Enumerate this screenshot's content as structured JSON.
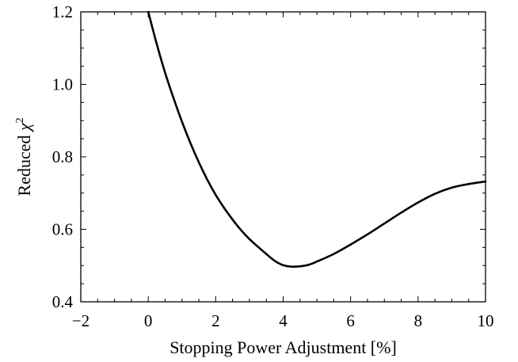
{
  "chart_data": {
    "type": "line",
    "title": "",
    "xlabel": "Stopping Power Adjustment [%]",
    "ylabel": "Reduced χ²",
    "ylabel_parts": {
      "text": "Reduced ",
      "symbol": "χ",
      "superscript": "2"
    },
    "xlim": [
      -2,
      10
    ],
    "ylim": [
      0.4,
      1.2
    ],
    "xticks": [
      -2,
      0,
      2,
      4,
      6,
      8,
      10
    ],
    "xtick_labels": [
      "−2",
      "0",
      "2",
      "4",
      "6",
      "8",
      "10"
    ],
    "yticks": [
      0.4,
      0.6,
      0.8,
      1.0,
      1.2
    ],
    "ytick_labels": [
      "0.4",
      "0.6",
      "0.8",
      "1.0",
      "1.2"
    ],
    "x_minor_step": 0.5,
    "y_minor_step": 0.05,
    "grid": false,
    "legend": "none",
    "series": [
      {
        "color": "#000000",
        "x": [
          0.0,
          0.25,
          0.5,
          0.75,
          1.0,
          1.25,
          1.5,
          1.75,
          2.0,
          2.25,
          2.5,
          2.75,
          3.0,
          3.25,
          3.5,
          3.75,
          4.0,
          4.25,
          4.5,
          4.75,
          5.0,
          5.5,
          6.0,
          6.5,
          7.0,
          7.5,
          8.0,
          8.5,
          9.0,
          9.5,
          10.0
        ],
        "y": [
          1.2,
          1.112,
          1.032,
          0.962,
          0.897,
          0.838,
          0.785,
          0.737,
          0.695,
          0.659,
          0.627,
          0.598,
          0.573,
          0.552,
          0.532,
          0.513,
          0.501,
          0.497,
          0.498,
          0.502,
          0.511,
          0.532,
          0.558,
          0.586,
          0.616,
          0.646,
          0.674,
          0.698,
          0.715,
          0.725,
          0.732
        ]
      }
    ]
  }
}
